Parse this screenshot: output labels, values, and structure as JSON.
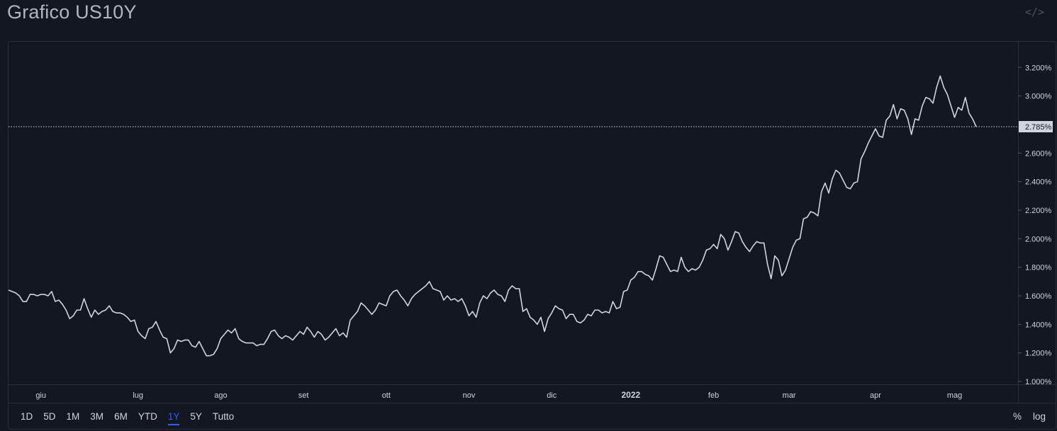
{
  "header": {
    "title": "Grafico US10Y",
    "embed_icon": "code-embed-icon"
  },
  "range_buttons": [
    {
      "label": "1D",
      "active": false
    },
    {
      "label": "5D",
      "active": false
    },
    {
      "label": "1M",
      "active": false
    },
    {
      "label": "3M",
      "active": false
    },
    {
      "label": "6M",
      "active": false
    },
    {
      "label": "YTD",
      "active": false
    },
    {
      "label": "1Y",
      "active": true
    },
    {
      "label": "5Y",
      "active": false
    },
    {
      "label": "Tutto",
      "active": false
    }
  ],
  "scale_toggles": {
    "percent_label": "%",
    "log_label": "log"
  },
  "colors": {
    "background": "#131722",
    "line": "#d1d4dc",
    "grid_border": "#2a2e39",
    "axis_text": "#d1d4dc",
    "active_accent": "#2962ff",
    "last_value_badge": "#d1d4dc"
  },
  "chart_data": {
    "type": "line",
    "title": "Grafico US10Y",
    "xlabel": "",
    "ylabel": "",
    "x_tick_labels": [
      "giu",
      "lug",
      "ago",
      "set",
      "ott",
      "nov",
      "dic",
      "2022",
      "feb",
      "mar",
      "apr",
      "mag"
    ],
    "y_tick_labels": [
      "1.000%",
      "1.200%",
      "1.400%",
      "1.600%",
      "1.800%",
      "2.000%",
      "2.200%",
      "2.400%",
      "2.600%",
      "3.000%",
      "3.200%"
    ],
    "y_ticks": [
      1.0,
      1.2,
      1.4,
      1.6,
      1.8,
      2.0,
      2.2,
      2.4,
      2.6,
      3.0,
      3.2
    ],
    "ylim": [
      0.98,
      3.38
    ],
    "last_value": 2.785,
    "last_value_label": "2.785%",
    "grid": false,
    "values": [
      1.64,
      1.63,
      1.62,
      1.6,
      1.56,
      1.56,
      1.61,
      1.61,
      1.6,
      1.61,
      1.61,
      1.6,
      1.63,
      1.56,
      1.57,
      1.54,
      1.5,
      1.44,
      1.46,
      1.5,
      1.5,
      1.58,
      1.51,
      1.45,
      1.5,
      1.47,
      1.49,
      1.5,
      1.53,
      1.49,
      1.48,
      1.48,
      1.47,
      1.45,
      1.42,
      1.43,
      1.35,
      1.32,
      1.3,
      1.37,
      1.38,
      1.42,
      1.36,
      1.31,
      1.3,
      1.2,
      1.23,
      1.29,
      1.28,
      1.29,
      1.29,
      1.25,
      1.24,
      1.28,
      1.23,
      1.18,
      1.18,
      1.19,
      1.23,
      1.3,
      1.33,
      1.36,
      1.34,
      1.37,
      1.3,
      1.28,
      1.27,
      1.27,
      1.27,
      1.25,
      1.26,
      1.26,
      1.3,
      1.35,
      1.36,
      1.32,
      1.3,
      1.32,
      1.31,
      1.29,
      1.32,
      1.35,
      1.33,
      1.38,
      1.35,
      1.31,
      1.35,
      1.33,
      1.29,
      1.31,
      1.34,
      1.37,
      1.32,
      1.34,
      1.31,
      1.43,
      1.46,
      1.49,
      1.55,
      1.53,
      1.5,
      1.47,
      1.5,
      1.55,
      1.54,
      1.53,
      1.6,
      1.63,
      1.64,
      1.6,
      1.57,
      1.53,
      1.58,
      1.61,
      1.63,
      1.65,
      1.67,
      1.7,
      1.65,
      1.64,
      1.63,
      1.57,
      1.6,
      1.57,
      1.58,
      1.56,
      1.58,
      1.53,
      1.46,
      1.49,
      1.45,
      1.55,
      1.6,
      1.58,
      1.62,
      1.64,
      1.61,
      1.6,
      1.56,
      1.64,
      1.67,
      1.65,
      1.65,
      1.49,
      1.51,
      1.45,
      1.43,
      1.4,
      1.45,
      1.35,
      1.44,
      1.48,
      1.53,
      1.51,
      1.5,
      1.44,
      1.47,
      1.47,
      1.42,
      1.41,
      1.43,
      1.47,
      1.46,
      1.5,
      1.5,
      1.48,
      1.49,
      1.48,
      1.56,
      1.51,
      1.52,
      1.63,
      1.64,
      1.71,
      1.73,
      1.77,
      1.77,
      1.75,
      1.74,
      1.71,
      1.79,
      1.88,
      1.87,
      1.82,
      1.77,
      1.78,
      1.77,
      1.87,
      1.8,
      1.77,
      1.79,
      1.78,
      1.8,
      1.85,
      1.92,
      1.93,
      1.96,
      1.93,
      2.03,
      2.0,
      1.92,
      1.98,
      2.05,
      2.04,
      1.98,
      1.94,
      1.91,
      1.95,
      1.98,
      1.97,
      1.97,
      1.82,
      1.72,
      1.88,
      1.85,
      1.74,
      1.78,
      1.86,
      1.94,
      1.99,
      2.0,
      2.14,
      2.15,
      2.19,
      2.18,
      2.16,
      2.33,
      2.39,
      2.32,
      2.42,
      2.48,
      2.46,
      2.41,
      2.36,
      2.35,
      2.39,
      2.4,
      2.56,
      2.61,
      2.67,
      2.72,
      2.77,
      2.72,
      2.71,
      2.83,
      2.86,
      2.94,
      2.84,
      2.91,
      2.9,
      2.84,
      2.73,
      2.84,
      2.83,
      2.93,
      2.99,
      2.98,
      2.95,
      3.06,
      3.14,
      3.06,
      3.01,
      2.93,
      2.85,
      2.92,
      2.9,
      2.99,
      2.88,
      2.84,
      2.785
    ]
  }
}
